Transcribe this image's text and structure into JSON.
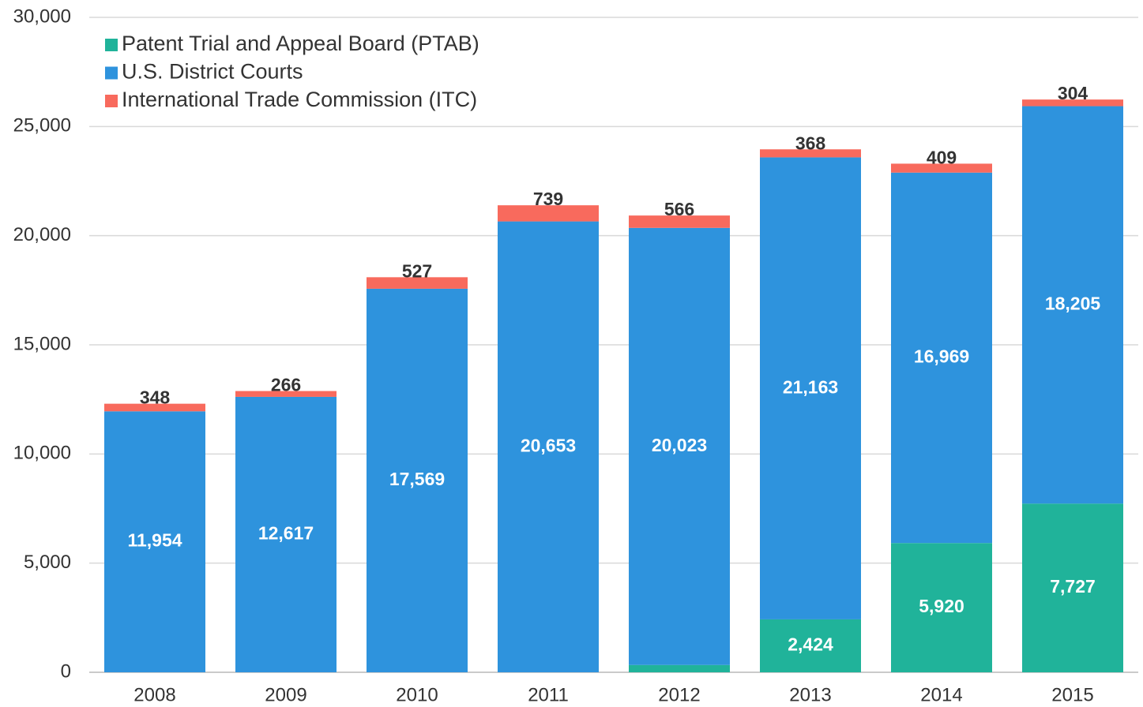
{
  "chart_data": {
    "type": "stacked_bar",
    "categories": [
      "2008",
      "2009",
      "2010",
      "2011",
      "2012",
      "2013",
      "2014",
      "2015"
    ],
    "series": [
      {
        "name": "Patent Trial and Appeal Board (PTAB)",
        "color": "#20b39a",
        "values": [
          null,
          null,
          null,
          null,
          334,
          2424,
          5920,
          7727
        ],
        "value_labels": [
          null,
          null,
          null,
          null,
          "334",
          "2,424",
          "5,920",
          "7,727"
        ]
      },
      {
        "name": "U.S. District Courts",
        "color": "#2e93dd",
        "values": [
          11954,
          12617,
          17569,
          20653,
          20023,
          21163,
          16969,
          18205
        ],
        "value_labels": [
          "11,954",
          "12,617",
          "17,569",
          "20,653",
          "20,023",
          "21,163",
          "16,969",
          "18,205"
        ]
      },
      {
        "name": "International Trade Commission (ITC)",
        "color": "#f86a5d",
        "values": [
          348,
          266,
          527,
          739,
          566,
          368,
          409,
          304
        ]
      }
    ],
    "ylim": [
      0,
      30000
    ],
    "yticks": [
      0,
      {
        "value": 5000,
        "label": "5,000"
      },
      {
        "value": 10000,
        "label": "10,000"
      },
      {
        "value": 15000,
        "label": "15,000"
      },
      {
        "value": 20000,
        "label": "20,000"
      },
      {
        "value": 25000,
        "label": "25,000"
      },
      {
        "value": 30000,
        "label": "30,000"
      }
    ],
    "grid": true,
    "legend": "top-left"
  }
}
